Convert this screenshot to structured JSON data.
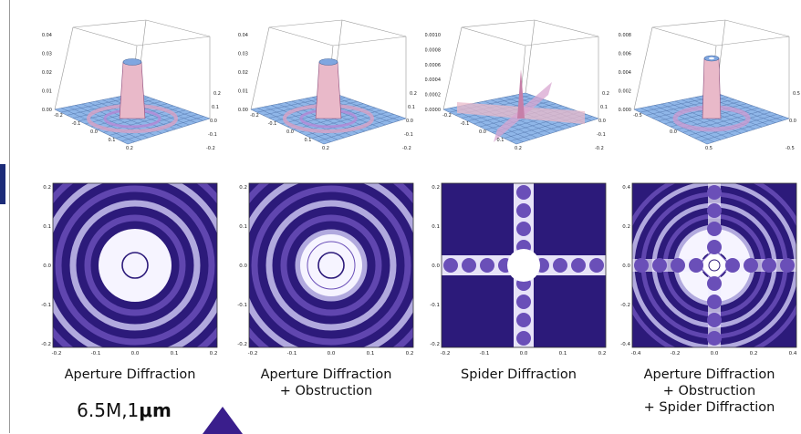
{
  "captions": [
    {
      "line1": "Aperture Diffraction",
      "line2": "",
      "line3": ""
    },
    {
      "line1": "Aperture Diffraction",
      "line2": "+ Obstruction",
      "line3": ""
    },
    {
      "line1": "Spider Diffraction",
      "line2": "",
      "line3": ""
    },
    {
      "line1": "Aperture Diffraction",
      "line2": "+ Obstruction",
      "line3": "+ Spider Diffraction"
    }
  ],
  "spec": {
    "value": "6.5M,1",
    "unit": "μm"
  },
  "surface_panels": [
    {
      "z_ticks": [
        "0.04",
        "0.03",
        "0.02",
        "0.01",
        "0.00"
      ],
      "x_ticks": [
        "-0.2",
        "-0.1",
        "0.0",
        "0.1",
        "0.2"
      ],
      "y_ticks": [
        "0.2",
        "0.1",
        "0.0",
        "-0.1",
        "-0.2"
      ]
    },
    {
      "z_ticks": [
        "0.04",
        "0.03",
        "0.02",
        "0.01",
        "0.00"
      ],
      "x_ticks": [
        "-0.2",
        "-0.1",
        "0.0",
        "0.1",
        "0.2"
      ],
      "y_ticks": [
        "0.2",
        "0.1",
        "0.0",
        "-0.1",
        "-0.2"
      ]
    },
    {
      "z_ticks": [
        "0.0010",
        "0.0008",
        "0.0006",
        "0.0004",
        "0.0002",
        "0.0000"
      ],
      "x_ticks": [
        "-0.2",
        "-0.1",
        "0.0",
        "0.1",
        "0.2"
      ],
      "y_ticks": [
        "0.2",
        "0.1",
        "0.0",
        "-0.1",
        "-0.2"
      ]
    },
    {
      "z_ticks": [
        "0.008",
        "0.006",
        "0.004",
        "0.002",
        "0.000"
      ],
      "x_ticks": [
        "-0.5",
        "0.0",
        "0.5"
      ],
      "y_ticks": [
        "0.5",
        "0.0",
        "-0.5"
      ]
    }
  ],
  "map_panels": [
    {
      "y_ticks": [
        "0.2",
        "0.1",
        "0.0",
        "-0.1",
        "-0.2"
      ],
      "x_ticks": [
        "-0.2",
        "-0.1",
        "0.0",
        "0.1",
        "0.2"
      ]
    },
    {
      "y_ticks": [
        "0.2",
        "0.1",
        "0.0",
        "-0.1",
        "-0.2"
      ],
      "x_ticks": [
        "-0.2",
        "-0.1",
        "0.0",
        "0.1",
        "0.2"
      ]
    },
    {
      "y_ticks": [
        "0.2",
        "0.1",
        "0.0",
        "-0.1",
        "-0.2"
      ],
      "x_ticks": [
        "-0.2",
        "-0.1",
        "0.0",
        "0.1",
        "0.2"
      ]
    },
    {
      "y_ticks": [
        "0.4",
        "0.2",
        "0.0",
        "-0.2",
        "-0.4"
      ],
      "x_ticks": [
        "-0.4",
        "-0.2",
        "0.0",
        "0.2",
        "0.4"
      ]
    }
  ],
  "colors": {
    "deep": "#2c1a7a",
    "mid": "#6a4fb8",
    "light": "#c9c3f0",
    "surface": "#8fb6e8",
    "peak": "#e9b9c9"
  }
}
